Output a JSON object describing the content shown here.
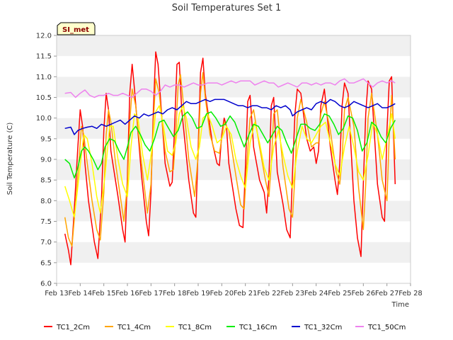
{
  "chart_data": {
    "type": "line",
    "title": "Soil Temperatures Set 1",
    "xlabel": "Time",
    "ylabel": "Soil Temperature (C)",
    "badge": "SI_met",
    "ylim": [
      6.0,
      12.0
    ],
    "xlim": [
      13,
      28
    ],
    "yticks": [
      "6.0",
      "6.5",
      "7.0",
      "7.5",
      "8.0",
      "8.5",
      "9.0",
      "9.5",
      "10.0",
      "10.5",
      "11.0",
      "11.5",
      "12.0"
    ],
    "xticks": [
      "Feb 13",
      "Feb 14",
      "Feb 15",
      "Feb 16",
      "Feb 17",
      "Feb 18",
      "Feb 19",
      "Feb 20",
      "Feb 21",
      "Feb 22",
      "Feb 23",
      "Feb 24",
      "Feb 25",
      "Feb 26",
      "Feb 27",
      "Feb 28"
    ],
    "grid": "horizontal alternating bands",
    "legend_position": "bottom",
    "series": [
      {
        "name": "TC1_2Cm",
        "color": "#ff0000",
        "x": [
          13.35,
          13.5,
          13.6,
          13.75,
          13.9,
          14.0,
          14.1,
          14.2,
          14.35,
          14.6,
          14.75,
          14.9,
          15.0,
          15.1,
          15.2,
          15.3,
          15.6,
          15.8,
          15.9,
          16.0,
          16.1,
          16.2,
          16.3,
          16.6,
          16.8,
          16.9,
          17.0,
          17.1,
          17.2,
          17.3,
          17.6,
          17.8,
          17.9,
          18.0,
          18.1,
          18.2,
          18.3,
          18.6,
          18.8,
          18.9,
          19.0,
          19.1,
          19.2,
          19.3,
          19.6,
          19.8,
          19.9,
          20.0,
          20.1,
          20.2,
          20.3,
          20.6,
          20.75,
          20.9,
          21.0,
          21.1,
          21.2,
          21.35,
          21.6,
          21.8,
          21.9,
          22.0,
          22.1,
          22.2,
          22.35,
          22.6,
          22.75,
          22.9,
          23.0,
          23.1,
          23.2,
          23.35,
          23.6,
          23.75,
          23.9,
          24.0,
          24.1,
          24.2,
          24.35,
          24.6,
          24.8,
          24.9,
          25.0,
          25.1,
          25.2,
          25.35,
          25.6,
          25.75,
          25.9,
          26.0,
          26.1,
          26.2,
          26.35,
          26.6,
          26.8,
          26.9,
          27.0,
          27.1,
          27.2,
          27.35
        ],
        "y": [
          7.2,
          6.8,
          6.45,
          7.8,
          9.3,
          10.2,
          9.8,
          8.9,
          8.0,
          7.0,
          6.6,
          8.0,
          9.7,
          10.6,
          10.2,
          9.2,
          8.1,
          7.3,
          7.0,
          8.6,
          10.6,
          11.3,
          10.7,
          8.6,
          7.5,
          7.15,
          8.2,
          10.2,
          11.6,
          11.3,
          8.9,
          8.35,
          8.45,
          9.8,
          11.3,
          11.35,
          10.2,
          8.5,
          7.7,
          7.6,
          9.3,
          11.1,
          11.45,
          10.6,
          9.4,
          8.9,
          8.85,
          9.6,
          10.0,
          9.8,
          8.9,
          7.8,
          7.4,
          7.35,
          8.8,
          10.4,
          10.55,
          9.3,
          8.5,
          8.2,
          7.7,
          8.6,
          10.3,
          10.5,
          8.7,
          7.9,
          7.3,
          7.1,
          8.7,
          10.1,
          10.7,
          10.6,
          9.5,
          9.2,
          9.3,
          8.9,
          9.2,
          10.3,
          10.7,
          9.3,
          8.5,
          8.15,
          8.9,
          10.3,
          10.85,
          10.6,
          8.0,
          7.1,
          6.65,
          8.4,
          10.1,
          10.9,
          10.7,
          8.4,
          7.6,
          7.5,
          9.7,
          10.9,
          11.0,
          8.4
        ]
      },
      {
        "name": "TC1_4Cm",
        "color": "#ffa500",
        "x": [
          13.35,
          13.5,
          13.65,
          13.8,
          13.95,
          14.05,
          14.15,
          14.3,
          14.5,
          14.7,
          14.85,
          15.0,
          15.1,
          15.2,
          15.3,
          15.5,
          15.7,
          15.85,
          16.0,
          16.1,
          16.2,
          16.35,
          16.6,
          16.85,
          17.0,
          17.1,
          17.2,
          17.35,
          17.6,
          17.8,
          17.95,
          18.05,
          18.15,
          18.25,
          18.4,
          18.6,
          18.85,
          19.0,
          19.1,
          19.2,
          19.3,
          19.5,
          19.7,
          19.9,
          20.0,
          20.1,
          20.3,
          20.6,
          20.8,
          20.95,
          21.05,
          21.2,
          21.35,
          21.6,
          21.85,
          22.0,
          22.1,
          22.2,
          22.35,
          22.6,
          22.85,
          23.0,
          23.1,
          23.2,
          23.35,
          23.6,
          23.8,
          24.0,
          24.1,
          24.2,
          24.35,
          24.6,
          24.85,
          25.0,
          25.1,
          25.2,
          25.35,
          25.6,
          25.8,
          26.0,
          26.1,
          26.2,
          26.35,
          26.6,
          26.8,
          27.0,
          27.1,
          27.2,
          27.35
        ],
        "y": [
          7.6,
          7.1,
          6.9,
          7.9,
          9.0,
          9.8,
          9.6,
          8.9,
          8.0,
          7.3,
          7.05,
          8.2,
          9.6,
          10.2,
          9.9,
          8.9,
          8.1,
          7.5,
          8.4,
          9.9,
          10.7,
          10.3,
          8.9,
          7.7,
          8.4,
          9.9,
          10.95,
          10.6,
          9.2,
          8.7,
          8.75,
          9.6,
          10.8,
          11.05,
          10.2,
          9.0,
          8.1,
          9.1,
          10.6,
          11.1,
          10.5,
          9.6,
          9.2,
          9.15,
          9.5,
          9.9,
          9.7,
          8.6,
          7.9,
          7.8,
          8.8,
          10.0,
          10.2,
          9.3,
          8.5,
          8.1,
          8.9,
          10.1,
          10.2,
          8.8,
          7.8,
          7.6,
          8.6,
          10.0,
          10.45,
          9.9,
          9.3,
          9.4,
          9.4,
          10.1,
          10.4,
          9.7,
          8.7,
          8.4,
          9.0,
          10.2,
          10.5,
          9.8,
          8.3,
          7.3,
          8.4,
          10.0,
          10.6,
          9.6,
          8.5,
          8.0,
          9.6,
          10.55,
          9.0
        ]
      },
      {
        "name": "TC1_8Cm",
        "color": "#ffff00",
        "x": [
          13.35,
          13.55,
          13.75,
          13.95,
          14.15,
          14.3,
          14.5,
          14.7,
          14.85,
          15.05,
          15.25,
          15.4,
          15.6,
          15.8,
          16.0,
          16.15,
          16.3,
          16.45,
          16.65,
          16.85,
          17.05,
          17.2,
          17.35,
          17.5,
          17.7,
          17.9,
          18.05,
          18.2,
          18.35,
          18.5,
          18.7,
          18.9,
          19.05,
          19.2,
          19.4,
          19.6,
          19.8,
          20.0,
          20.2,
          20.4,
          20.6,
          20.8,
          21.0,
          21.2,
          21.4,
          21.6,
          21.8,
          22.0,
          22.2,
          22.4,
          22.6,
          22.8,
          23.0,
          23.2,
          23.4,
          23.6,
          23.8,
          24.0,
          24.2,
          24.4,
          24.6,
          24.8,
          25.0,
          25.2,
          25.4,
          25.6,
          25.8,
          26.0,
          26.2,
          26.4,
          26.6,
          26.8,
          27.0,
          27.2,
          27.35
        ],
        "y": [
          8.35,
          8.0,
          7.6,
          8.6,
          9.6,
          9.5,
          8.9,
          8.1,
          7.7,
          8.6,
          9.8,
          9.8,
          9.0,
          8.4,
          8.1,
          9.3,
          10.1,
          10.0,
          9.1,
          8.5,
          9.3,
          10.15,
          10.3,
          9.9,
          9.2,
          9.1,
          9.4,
          10.1,
          10.3,
          10.0,
          9.3,
          9.0,
          9.3,
          10.0,
          10.1,
          9.8,
          9.4,
          9.5,
          9.8,
          9.6,
          9.0,
          8.6,
          8.3,
          9.4,
          9.9,
          9.4,
          8.8,
          8.5,
          9.3,
          9.7,
          9.1,
          8.6,
          8.3,
          9.2,
          9.8,
          9.5,
          9.4,
          9.6,
          9.8,
          9.9,
          9.4,
          8.9,
          8.6,
          9.3,
          9.8,
          9.3,
          8.7,
          8.5,
          9.1,
          9.9,
          9.6,
          9.0,
          9.5,
          10.1,
          9.5
        ]
      },
      {
        "name": "TC1_16Cm",
        "color": "#00ee00",
        "x": [
          13.35,
          13.55,
          13.75,
          13.9,
          14.05,
          14.2,
          14.35,
          14.55,
          14.75,
          14.9,
          15.05,
          15.25,
          15.45,
          15.65,
          15.85,
          16.0,
          16.15,
          16.35,
          16.55,
          16.75,
          16.95,
          17.15,
          17.35,
          17.55,
          17.75,
          17.95,
          18.15,
          18.35,
          18.55,
          18.75,
          18.95,
          19.15,
          19.35,
          19.55,
          19.75,
          19.95,
          20.15,
          20.35,
          20.55,
          20.75,
          20.95,
          21.15,
          21.35,
          21.55,
          21.75,
          21.95,
          22.15,
          22.35,
          22.55,
          22.75,
          22.95,
          23.15,
          23.35,
          23.55,
          23.75,
          23.95,
          24.15,
          24.35,
          24.55,
          24.75,
          24.95,
          25.15,
          25.35,
          25.55,
          25.75,
          25.95,
          26.15,
          26.35,
          26.55,
          26.75,
          26.95,
          27.15,
          27.35
        ],
        "y": [
          9.0,
          8.9,
          8.55,
          8.8,
          9.2,
          9.3,
          9.2,
          9.0,
          8.75,
          8.9,
          9.3,
          9.5,
          9.45,
          9.2,
          9.0,
          9.3,
          9.65,
          9.8,
          9.6,
          9.35,
          9.2,
          9.5,
          9.9,
          9.95,
          9.75,
          9.55,
          9.7,
          10.05,
          10.15,
          10.0,
          9.75,
          9.8,
          10.1,
          10.15,
          10.0,
          9.8,
          9.85,
          10.05,
          9.9,
          9.6,
          9.3,
          9.6,
          9.85,
          9.8,
          9.6,
          9.4,
          9.6,
          9.8,
          9.7,
          9.4,
          9.15,
          9.5,
          9.85,
          9.85,
          9.75,
          9.7,
          9.85,
          10.1,
          10.05,
          9.85,
          9.6,
          9.75,
          10.05,
          10.0,
          9.7,
          9.2,
          9.4,
          9.9,
          9.8,
          9.55,
          9.4,
          9.75,
          9.95
        ]
      },
      {
        "name": "TC1_32Cm",
        "color": "#0000cd",
        "x": [
          13.35,
          13.6,
          13.75,
          13.9,
          14.1,
          14.3,
          14.5,
          14.7,
          14.9,
          15.1,
          15.3,
          15.5,
          15.7,
          15.9,
          16.1,
          16.3,
          16.5,
          16.7,
          16.9,
          17.1,
          17.3,
          17.5,
          17.7,
          17.9,
          18.1,
          18.3,
          18.5,
          18.7,
          18.9,
          19.1,
          19.3,
          19.5,
          19.7,
          19.9,
          20.1,
          20.3,
          20.5,
          20.7,
          20.9,
          21.1,
          21.3,
          21.5,
          21.7,
          21.9,
          22.1,
          22.3,
          22.5,
          22.7,
          22.9,
          23.0,
          23.2,
          23.4,
          23.6,
          23.8,
          24.0,
          24.2,
          24.4,
          24.6,
          24.8,
          25.0,
          25.2,
          25.4,
          25.6,
          25.8,
          26.0,
          26.2,
          26.4,
          26.6,
          26.8,
          27.0,
          27.2,
          27.35
        ],
        "y": [
          9.75,
          9.78,
          9.6,
          9.7,
          9.75,
          9.78,
          9.8,
          9.75,
          9.85,
          9.8,
          9.85,
          9.9,
          9.95,
          9.85,
          9.95,
          10.05,
          10.0,
          10.1,
          10.05,
          10.1,
          10.15,
          10.1,
          10.2,
          10.25,
          10.2,
          10.3,
          10.4,
          10.35,
          10.35,
          10.4,
          10.45,
          10.4,
          10.45,
          10.45,
          10.45,
          10.4,
          10.35,
          10.3,
          10.3,
          10.25,
          10.3,
          10.3,
          10.25,
          10.25,
          10.2,
          10.3,
          10.25,
          10.3,
          10.2,
          10.05,
          10.15,
          10.2,
          10.25,
          10.2,
          10.35,
          10.4,
          10.35,
          10.45,
          10.4,
          10.3,
          10.25,
          10.3,
          10.4,
          10.35,
          10.3,
          10.25,
          10.3,
          10.35,
          10.25,
          10.25,
          10.3,
          10.35
        ]
      },
      {
        "name": "TC1_50Cm",
        "color": "#ee82ee",
        "x": [
          13.35,
          13.6,
          13.8,
          14.0,
          14.2,
          14.4,
          14.6,
          14.8,
          15.0,
          15.2,
          15.4,
          15.6,
          15.8,
          16.0,
          16.2,
          16.4,
          16.6,
          16.8,
          17.0,
          17.2,
          17.4,
          17.6,
          17.8,
          18.0,
          18.2,
          18.4,
          18.6,
          18.8,
          19.0,
          19.2,
          19.4,
          19.6,
          19.8,
          20.0,
          20.2,
          20.4,
          20.6,
          20.8,
          21.0,
          21.2,
          21.4,
          21.6,
          21.8,
          22.0,
          22.2,
          22.4,
          22.6,
          22.8,
          23.0,
          23.2,
          23.4,
          23.6,
          23.8,
          24.0,
          24.2,
          24.4,
          24.6,
          24.8,
          25.0,
          25.2,
          25.4,
          25.6,
          25.8,
          26.0,
          26.2,
          26.4,
          26.6,
          26.8,
          27.0,
          27.2,
          27.35
        ],
        "y": [
          10.6,
          10.62,
          10.5,
          10.6,
          10.68,
          10.55,
          10.5,
          10.55,
          10.55,
          10.6,
          10.55,
          10.55,
          10.6,
          10.55,
          10.5,
          10.6,
          10.7,
          10.7,
          10.65,
          10.55,
          10.65,
          10.8,
          10.75,
          10.8,
          10.8,
          10.75,
          10.8,
          10.85,
          10.8,
          10.8,
          10.85,
          10.85,
          10.85,
          10.8,
          10.85,
          10.9,
          10.85,
          10.9,
          10.9,
          10.9,
          10.8,
          10.85,
          10.9,
          10.85,
          10.85,
          10.75,
          10.8,
          10.85,
          10.8,
          10.75,
          10.85,
          10.85,
          10.8,
          10.85,
          10.8,
          10.85,
          10.85,
          10.8,
          10.9,
          10.95,
          10.85,
          10.85,
          10.9,
          10.95,
          10.85,
          10.75,
          10.85,
          10.9,
          10.85,
          10.9,
          10.85
        ]
      }
    ]
  }
}
